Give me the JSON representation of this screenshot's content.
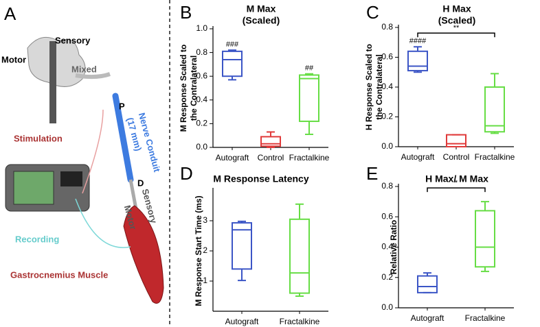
{
  "illustration": {
    "panel_label": "A",
    "motor_top": "Motor",
    "sensory_top": "Sensory",
    "mixed": "Mixed",
    "proximal": "P",
    "conduit": "Nerve Conduit",
    "conduit_length": "(17 mm)",
    "stimulation": "Stimulation",
    "distal": "D",
    "motor_bottom": "Motor",
    "sensory_bottom": "Sensory",
    "recording": "Recording",
    "muscle": "Gastrocnemius Muscle"
  },
  "chart_data": [
    {
      "type": "box",
      "panel_label": "B",
      "title": "M Max",
      "subtitle": "(Scaled)",
      "ylabel": [
        "M Response Scaled to",
        "the Contralateral"
      ],
      "categories": [
        "Autograft",
        "Control",
        "Fractalkine"
      ],
      "colors": [
        "#3b55c6",
        "#e03a3a",
        "#66dd44"
      ],
      "boxes": [
        {
          "min": 0.57,
          "q1": 0.6,
          "median": 0.74,
          "q3": 0.81,
          "max": 0.82
        },
        {
          "min": 0.0,
          "q1": 0.01,
          "median": 0.03,
          "q3": 0.09,
          "max": 0.13
        },
        {
          "min": 0.11,
          "q1": 0.22,
          "median": 0.58,
          "q3": 0.61,
          "max": 0.62
        }
      ],
      "annotations": [
        "###",
        null,
        "##"
      ],
      "ylim": [
        0,
        1
      ],
      "yticks": [
        {
          "value": 0,
          "label": "0.0"
        },
        0.2,
        0.4,
        0.6,
        0.8,
        {
          "value": 1,
          "label": "1.0"
        }
      ]
    },
    {
      "type": "box",
      "panel_label": "C",
      "title": "H Max",
      "subtitle": "(Scaled)",
      "ylabel": [
        "H Response Scaled to",
        "the Contralateral"
      ],
      "categories": [
        "Autograft",
        "Control",
        "Fractalkine"
      ],
      "colors": [
        "#3b55c6",
        "#e03a3a",
        "#66dd44"
      ],
      "boxes": [
        {
          "min": 0.5,
          "q1": 0.51,
          "median": 0.54,
          "q3": 0.64,
          "max": 0.67
        },
        {
          "min": 0.0,
          "q1": 0.0,
          "median": 0.02,
          "q3": 0.08,
          "max": 0.08
        },
        {
          "min": 0.09,
          "q1": 0.1,
          "median": 0.14,
          "q3": 0.4,
          "max": 0.49
        }
      ],
      "annotations": [
        "####",
        null,
        null
      ],
      "bracket": "**",
      "ylim": [
        0,
        0.8
      ],
      "yticks": [
        {
          "value": 0,
          "label": "0.0"
        },
        0.2,
        0.4,
        0.6,
        0.8
      ]
    },
    {
      "type": "box",
      "panel_label": "D",
      "title": "M Response Latency",
      "ylabel": [
        "M Response Start Time (ms)"
      ],
      "categories": [
        "Autograft",
        "Fractalkine"
      ],
      "colors": [
        "#3b55c6",
        "#66dd44"
      ],
      "boxes": [
        {
          "min": 1.02,
          "q1": 1.4,
          "median": 2.7,
          "q3": 2.93,
          "max": 2.98
        },
        {
          "min": 0.5,
          "q1": 0.6,
          "median": 1.27,
          "q3": 3.05,
          "max": 3.55
        }
      ],
      "ylim": [
        0,
        4
      ],
      "yticks": [
        1,
        2,
        3
      ]
    },
    {
      "type": "box",
      "panel_label": "E",
      "title": "H Max/ M Max",
      "ylabel": [
        "Relative Ratio"
      ],
      "categories": [
        "Autograft",
        "Fractalkine"
      ],
      "colors": [
        "#3b55c6",
        "#66dd44"
      ],
      "boxes": [
        {
          "min": 0.1,
          "q1": 0.1,
          "median": 0.14,
          "q3": 0.21,
          "max": 0.23
        },
        {
          "min": 0.24,
          "q1": 0.27,
          "median": 0.4,
          "q3": 0.64,
          "max": 0.7
        }
      ],
      "bracket": "*",
      "ylim": [
        0,
        0.8
      ],
      "yticks": [
        {
          "value": 0,
          "label": "0.0"
        },
        0.2,
        0.4,
        0.6,
        0.8
      ]
    }
  ]
}
